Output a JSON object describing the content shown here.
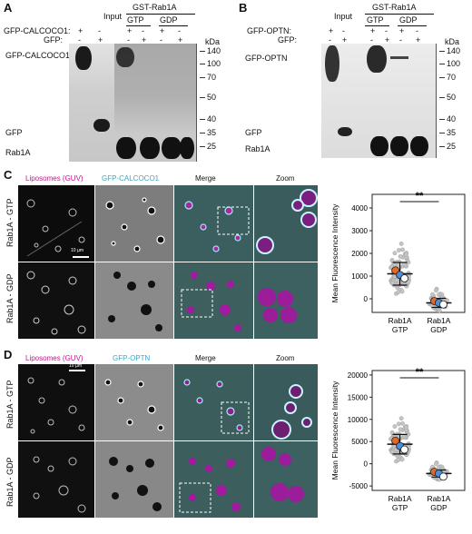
{
  "panel_a": {
    "letter": "A",
    "input_label": "Input",
    "gst_label": "GST-Rab1A",
    "gtp_label": "GTP",
    "gdp_label": "GDP",
    "row1_label": "GFP-CALCOCO1:",
    "row2_label": "GFP:",
    "row1_signs": [
      "+",
      "-",
      "+",
      "-",
      "+",
      "-"
    ],
    "row2_signs": [
      "-",
      "+",
      "-",
      "+",
      "-",
      "+"
    ],
    "kda": "kDa",
    "markers": [
      "140",
      "100",
      "70",
      "50",
      "40",
      "35",
      "25"
    ],
    "band_gfp_calcoco1": "GFP-CALCOCO1",
    "band_gfp": "GFP",
    "band_rab1a": "Rab1A"
  },
  "panel_b": {
    "letter": "B",
    "input_label": "Input",
    "gst_label": "GST-Rab1A",
    "gtp_label": "GTP",
    "gdp_label": "GDP",
    "row1_label": "GFP-OPTN:",
    "row2_label": "GFP:",
    "row1_signs": [
      "+",
      "-",
      "+",
      "-",
      "+",
      "-"
    ],
    "row2_signs": [
      "-",
      "+",
      "-",
      "+",
      "-",
      "+"
    ],
    "kda": "kDa",
    "markers": [
      "140",
      "100",
      "70",
      "50",
      "40",
      "35",
      "25"
    ],
    "band_gfp_optn": "GFP-OPTN",
    "band_gfp": "GFP",
    "band_rab1a": "Rab1A"
  },
  "panel_c": {
    "letter": "C",
    "headers": [
      "Liposomes (GUV)",
      "GFP-CALCOCO1",
      "Merge",
      "Zoom"
    ],
    "row_labels": [
      "Rab1A - GTP",
      "Rab1A - GDP"
    ],
    "scale_bar": "10 µm",
    "significance": "**",
    "chart_data": {
      "type": "scatter",
      "ylabel": "Mean Fluorescence Intensity",
      "categories": [
        "Rab1A GTP",
        "Rab1A GDP"
      ],
      "ylim": [
        -600,
        4600
      ],
      "yticks": [
        0,
        1000,
        2000,
        3000,
        4000
      ],
      "means": [
        1100,
        -180
      ],
      "sd": [
        500,
        200
      ],
      "replicate_means": [
        [
          1250,
          1050,
          900
        ],
        [
          -100,
          -180,
          -250
        ]
      ],
      "replicate_colors": [
        "#e06a2b",
        "#4a8fd9",
        "#ffffff"
      ]
    }
  },
  "panel_d": {
    "letter": "D",
    "headers": [
      "Liposomes (GUV)",
      "GFP-OPTN",
      "Merge",
      "Zoom"
    ],
    "row_labels": [
      "Rab1A - GTP",
      "Rab1A - GDP"
    ],
    "scale_bar": "10 µm",
    "significance": "**",
    "chart_data": {
      "type": "scatter",
      "ylabel": "Mean Fluorescence Intensity",
      "categories": [
        "Rab1A GTP",
        "Rab1A GDP"
      ],
      "ylim": [
        -6000,
        21000
      ],
      "yticks": [
        -5000,
        0,
        5000,
        10000,
        15000,
        20000
      ],
      "means": [
        4400,
        -2200
      ],
      "sd": [
        2200,
        800
      ],
      "replicate_means": [
        [
          5200,
          4000,
          3200
        ],
        [
          -1800,
          -2200,
          -2900
        ]
      ],
      "replicate_colors": [
        "#e06a2b",
        "#4a8fd9",
        "#ffffff"
      ]
    }
  }
}
